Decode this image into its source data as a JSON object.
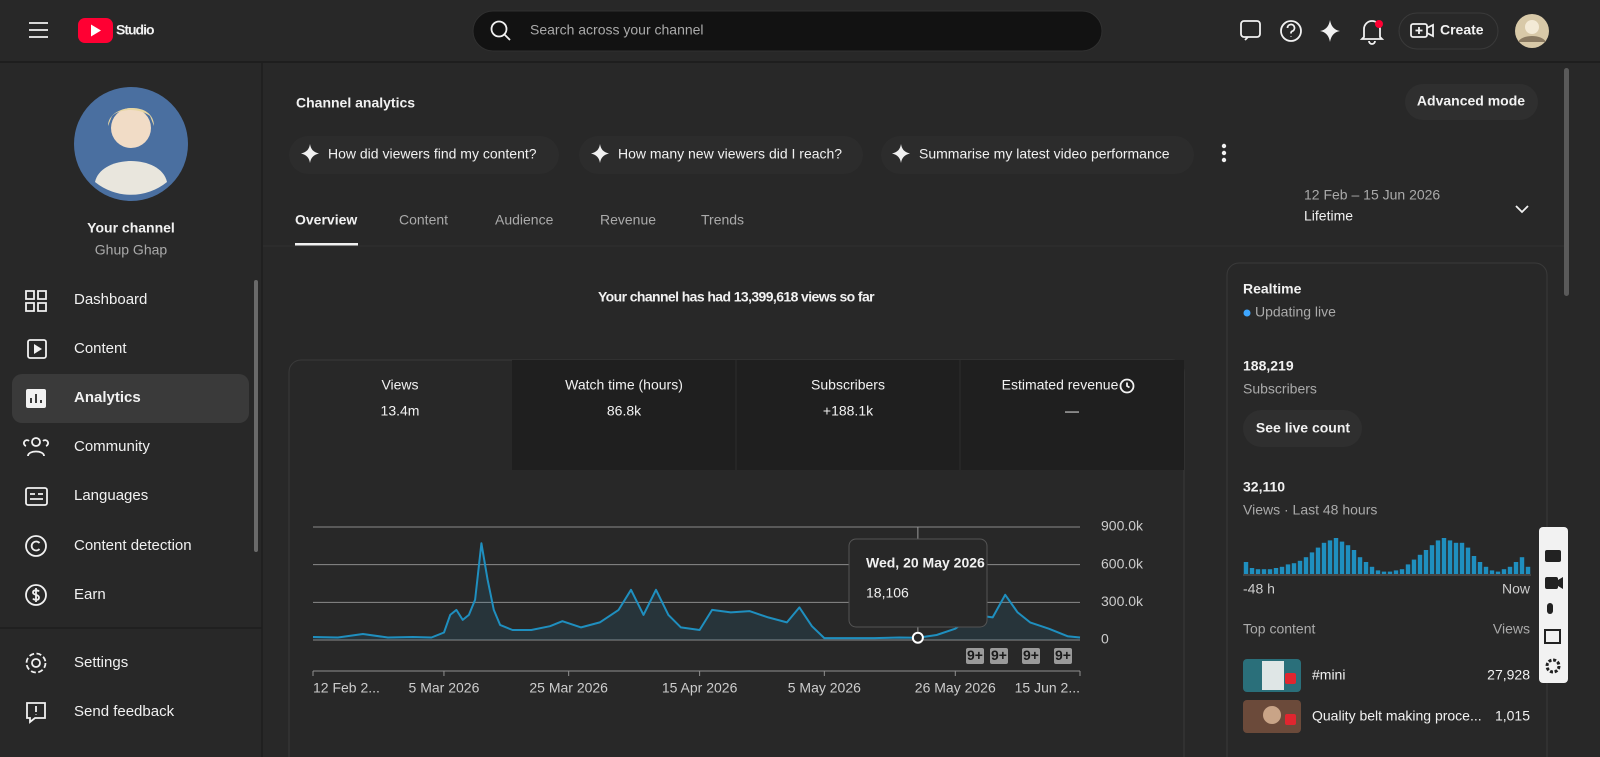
{
  "header": {
    "logo": "Studio",
    "search_placeholder": "Search across your channel",
    "create": "Create"
  },
  "sidebar": {
    "channel_title": "Your channel",
    "channel_name": "Ghup Ghap",
    "nav": [
      "Dashboard",
      "Content",
      "Analytics",
      "Community",
      "Languages",
      "Content detection",
      "Earn"
    ],
    "footer_nav": [
      "Settings",
      "Send feedback"
    ]
  },
  "page": {
    "title": "Channel analytics",
    "advanced": "Advanced mode",
    "prompts": [
      "How did viewers find my content?",
      "How many new viewers did I reach?",
      "Summarise my latest video performance"
    ],
    "tabs": [
      "Overview",
      "Content",
      "Audience",
      "Revenue",
      "Trends"
    ],
    "date_range": "12 Feb – 15 Jun 2026",
    "period": "Lifetime",
    "headline": "Your channel has had 13,399,618 views so far"
  },
  "metrics": [
    {
      "label": "Views",
      "value": "13.4m"
    },
    {
      "label": "Watch time (hours)",
      "value": "86.8k"
    },
    {
      "label": "Subscribers",
      "value": "+188.1k"
    },
    {
      "label": "Estimated revenue",
      "value": "—"
    }
  ],
  "tooltip": {
    "title": "Wed, 20 May 2026",
    "value": "18,106"
  },
  "badges": [
    "9+",
    "9+",
    "9+",
    "9+"
  ],
  "chart_data": [
    {
      "type": "line",
      "color": "#1f8fbf",
      "grid": true,
      "x": [
        "2026-02-12",
        "2026-02-16",
        "2026-02-20",
        "2026-02-24",
        "2026-02-28",
        "2026-03-03",
        "2026-03-05",
        "2026-03-06",
        "2026-03-07",
        "2026-03-08",
        "2026-03-09",
        "2026-03-10",
        "2026-03-11",
        "2026-03-12",
        "2026-03-13",
        "2026-03-14",
        "2026-03-16",
        "2026-03-19",
        "2026-03-22",
        "2026-03-24",
        "2026-03-27",
        "2026-03-30",
        "2026-04-02",
        "2026-04-04",
        "2026-04-06",
        "2026-04-08",
        "2026-04-10",
        "2026-04-12",
        "2026-04-15",
        "2026-04-17",
        "2026-04-20",
        "2026-04-23",
        "2026-04-26",
        "2026-04-29",
        "2026-05-01",
        "2026-05-03",
        "2026-05-05",
        "2026-05-09",
        "2026-05-13",
        "2026-05-17",
        "2026-05-20",
        "2026-05-23",
        "2026-05-26",
        "2026-05-29",
        "2026-06-01",
        "2026-06-03",
        "2026-06-05",
        "2026-06-07",
        "2026-06-10",
        "2026-06-13",
        "2026-06-15"
      ],
      "values": [
        24000,
        20000,
        48000,
        20000,
        24000,
        20000,
        60000,
        200000,
        240000,
        160000,
        200000,
        320000,
        770000,
        480000,
        240000,
        120000,
        80000,
        80000,
        110000,
        150000,
        100000,
        140000,
        240000,
        400000,
        200000,
        400000,
        200000,
        100000,
        80000,
        240000,
        220000,
        230000,
        180000,
        140000,
        260000,
        110000,
        15000,
        15000,
        15000,
        20000,
        18106,
        40000,
        90000,
        200000,
        180000,
        360000,
        220000,
        140000,
        90000,
        30000,
        20000
      ],
      "xlim": [
        "2026-02-12",
        "2026-06-15"
      ],
      "xticks": [
        {
          "value": "2026-02-12",
          "label": "12 Feb 2..."
        },
        {
          "value": "2026-03-05",
          "label": "5 Mar 2026"
        },
        {
          "value": "2026-03-25",
          "label": "25 Mar 2026"
        },
        {
          "value": "2026-04-15",
          "label": "15 Apr 2026"
        },
        {
          "value": "2026-05-05",
          "label": "5 May 2026"
        },
        {
          "value": "2026-05-26",
          "label": "26 May 2026"
        },
        {
          "value": "2026-06-15",
          "label": "15 Jun 2..."
        }
      ],
      "ylim": [
        0,
        900000
      ],
      "yticks": [
        0,
        {
          "value": 300000,
          "label": "300.0k"
        },
        {
          "value": 600000,
          "label": "600.0k"
        },
        {
          "value": 900000,
          "label": "900.0k"
        }
      ]
    },
    {
      "type": "bar",
      "color": "#1f8fbf",
      "categories": [
        "-48 h",
        null,
        null,
        null,
        null,
        null,
        null,
        null,
        null,
        null,
        null,
        null,
        null,
        null,
        null,
        null,
        null,
        null,
        null,
        null,
        null,
        null,
        null,
        null,
        null,
        null,
        null,
        null,
        null,
        null,
        null,
        null,
        null,
        null,
        null,
        null,
        null,
        null,
        null,
        null,
        null,
        null,
        null,
        null,
        null,
        null,
        null,
        "Now"
      ],
      "values": [
        500,
        250,
        200,
        200,
        200,
        250,
        300,
        400,
        450,
        550,
        700,
        900,
        1100,
        1300,
        1400,
        1500,
        1350,
        1200,
        1000,
        700,
        500,
        300,
        150,
        100,
        100,
        150,
        200,
        400,
        600,
        800,
        1000,
        1200,
        1400,
        1500,
        1400,
        1300,
        1300,
        1100,
        750,
        500,
        300,
        150,
        100,
        200,
        300,
        500,
        700,
        300
      ]
    }
  ],
  "realtime": {
    "title": "Realtime",
    "status": "Updating live",
    "subscribers": "188,219",
    "subscribers_label": "Subscribers",
    "see_live": "See live count",
    "views": "32,110",
    "views_label": "Views · Last 48 hours",
    "top_content": "Top content",
    "views_col": "Views",
    "items": [
      {
        "title": "#mini",
        "views": "27,928"
      },
      {
        "title": "Quality belt making proce...",
        "views": "1,015"
      }
    ]
  }
}
